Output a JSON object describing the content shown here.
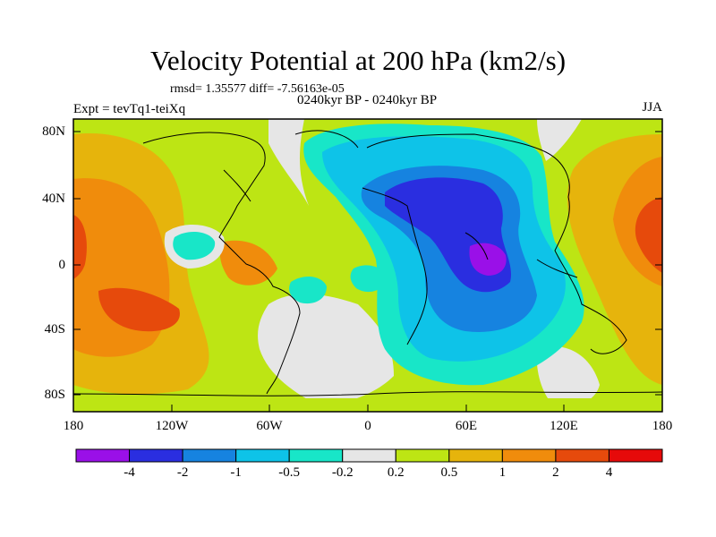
{
  "figure": {
    "title": "Velocity Potential at 200 hPa (km2/s)",
    "stats": "rmsd= 1.35577 diff= -7.56163e-05",
    "period": "0240kyr BP - 0240kyr BP",
    "experiment": "Expt = tevTq1-teiXq",
    "season": "JJA"
  },
  "axes": {
    "lat_labels": [
      "80N",
      "40N",
      "0",
      "40S",
      "80S"
    ],
    "lon_labels": [
      "180",
      "120W",
      "60W",
      "0",
      "60E",
      "120E",
      "180"
    ]
  },
  "colorbar": {
    "levels": [
      "-4",
      "-2",
      "-1",
      "-0.5",
      "-0.2",
      "0.2",
      "0.5",
      "1",
      "2",
      "4"
    ],
    "colors": [
      "#9a10e8",
      "#2a2ee0",
      "#1683e0",
      "#0ec3e8",
      "#18e6c8",
      "#e6e6e6",
      "#bde514",
      "#e6b40c",
      "#f08c0c",
      "#e64a0c",
      "#e60a0a"
    ]
  },
  "colors": {
    "land_outline": "#000000",
    "background": "#ffffff"
  }
}
